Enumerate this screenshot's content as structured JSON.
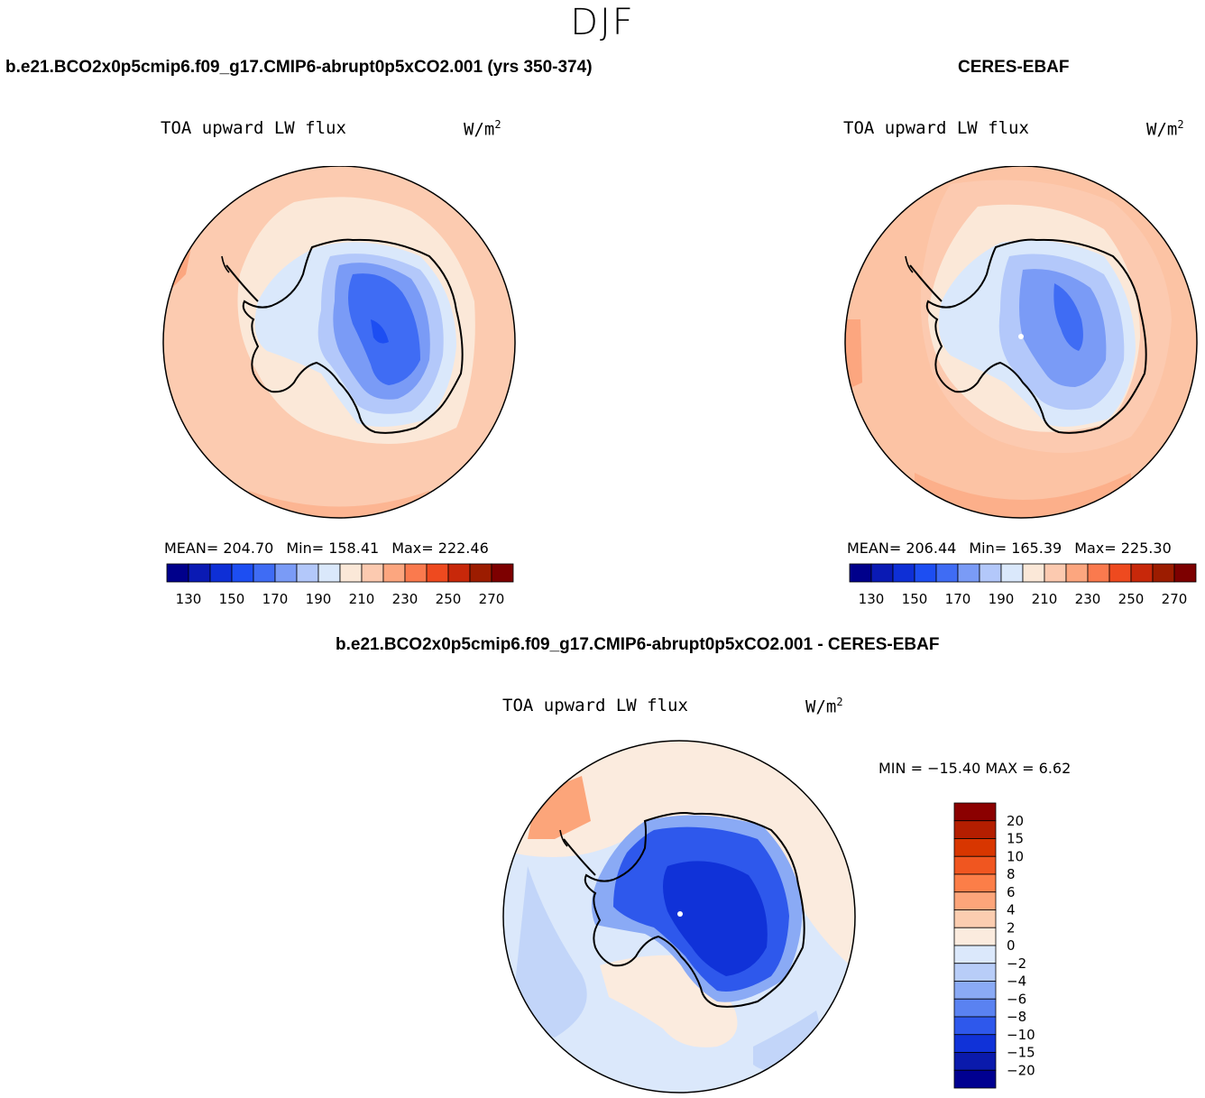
{
  "season": "DJF",
  "panels": [
    {
      "title": "b.e21.BCO2x0p5cmip6.f09_g17.CMIP6-abrupt0p5xCO2.001 (yrs 350-374)",
      "field": "TOA upward LW flux",
      "units": "W/m",
      "units_exp": "2",
      "stats": {
        "mean": "MEAN= 204.70",
        "min": "Min= 158.41",
        "max": "Max= 222.46"
      }
    },
    {
      "title": "CERES-EBAF",
      "field": "TOA upward LW flux",
      "units": "W/m",
      "units_exp": "2",
      "stats": {
        "mean": "MEAN= 206.44",
        "min": "Min= 165.39",
        "max": "Max= 225.30"
      }
    },
    {
      "title": "b.e21.BCO2x0p5cmip6.f09_g17.CMIP6-abrupt0p5xCO2.001 - CERES-EBAF",
      "field": "TOA upward LW flux",
      "units": "W/m",
      "units_exp": "2",
      "stats": {
        "minmax": "MIN = −15.40 MAX =    6.62"
      }
    }
  ],
  "chart_data": [
    {
      "type": "heatmap",
      "projection": "south-polar-stereographic",
      "title": "b.e21.BCO2x0p5cmip6.f09_g17.CMIP6-abrupt0p5xCO2.001 (yrs 350-374)",
      "variable": "TOA upward LW flux",
      "units": "W/m2",
      "mean": 204.7,
      "min": 158.41,
      "max": 222.46,
      "colorbar": {
        "orientation": "horizontal",
        "levels": [
          130,
          140,
          150,
          160,
          170,
          180,
          190,
          200,
          210,
          220,
          230,
          240,
          250,
          260,
          270
        ],
        "tick_labels": [
          "130",
          "150",
          "170",
          "190",
          "210",
          "230",
          "250",
          "270"
        ],
        "colors": [
          "#00008b",
          "#0a1ab4",
          "#0e2fd6",
          "#1d4ef2",
          "#3f6cf4",
          "#7a9bf6",
          "#b3c8fa",
          "#dae8fb",
          "#fbe8d8",
          "#fccab0",
          "#fca67f",
          "#fa7a4e",
          "#ee4a1f",
          "#c8280a",
          "#9c1c00",
          "#7d0000"
        ]
      }
    },
    {
      "type": "heatmap",
      "projection": "south-polar-stereographic",
      "title": "CERES-EBAF",
      "variable": "TOA upward LW flux",
      "units": "W/m2",
      "mean": 206.44,
      "min": 165.39,
      "max": 225.3,
      "colorbar": {
        "orientation": "horizontal",
        "levels": [
          130,
          140,
          150,
          160,
          170,
          180,
          190,
          200,
          210,
          220,
          230,
          240,
          250,
          260,
          270
        ],
        "tick_labels": [
          "130",
          "150",
          "170",
          "190",
          "210",
          "230",
          "250",
          "270"
        ],
        "colors": [
          "#00008b",
          "#0a1ab4",
          "#0e2fd6",
          "#1d4ef2",
          "#3f6cf4",
          "#7a9bf6",
          "#b3c8fa",
          "#dae8fb",
          "#fbe8d8",
          "#fccab0",
          "#fca67f",
          "#fa7a4e",
          "#ee4a1f",
          "#c8280a",
          "#9c1c00",
          "#7d0000"
        ]
      }
    },
    {
      "type": "heatmap",
      "projection": "south-polar-stereographic",
      "title": "b.e21.BCO2x0p5cmip6.f09_g17.CMIP6-abrupt0p5xCO2.001 - CERES-EBAF",
      "variable": "TOA upward LW flux",
      "units": "W/m2",
      "min": -15.4,
      "max": 6.62,
      "colorbar": {
        "orientation": "vertical",
        "levels": [
          20,
          15,
          10,
          8,
          6,
          4,
          2,
          0,
          -2,
          -4,
          -6,
          -8,
          -10,
          -15,
          -20
        ],
        "tick_labels": [
          "20",
          "15",
          "10",
          "8",
          "6",
          "4",
          "2",
          "0",
          "−2",
          "−4",
          "−6",
          "−8",
          "−10",
          "−15",
          "−20"
        ],
        "colors": [
          "#8b0000",
          "#b41e00",
          "#d83600",
          "#f05620",
          "#fc7e48",
          "#fca57a",
          "#fbcdb0",
          "#fbebde",
          "#dbe8fb",
          "#b8cdf8",
          "#8aaaf5",
          "#5a82f1",
          "#2e58ec",
          "#1032d8",
          "#0a1aac",
          "#000090"
        ]
      }
    }
  ],
  "colors": {
    "ocean_model": "#fccbb0",
    "ocean_obs": "#fcc3a4",
    "ocean_diff": "#dbe8fb",
    "coast": "#000000",
    "disk_edge": "#000000"
  }
}
